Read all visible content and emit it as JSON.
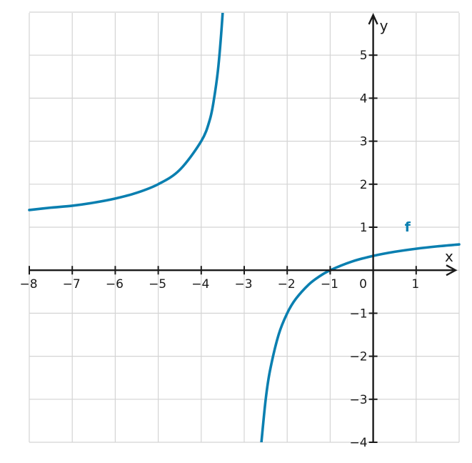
{
  "chart_data": {
    "type": "line",
    "title": "",
    "xlabel": "x",
    "ylabel": "y",
    "xlim": [
      -8,
      2
    ],
    "ylim": [
      -4,
      6
    ],
    "grid": true,
    "x_ticks": [
      -8,
      -7,
      -6,
      -5,
      -4,
      -3,
      -2,
      -1,
      0,
      1
    ],
    "x_tick_labels": [
      "−8",
      "−7",
      "−6",
      "−5",
      "−4",
      "−3",
      "−2",
      "−1",
      "0",
      "1"
    ],
    "y_ticks": [
      -4,
      -3,
      -2,
      -1,
      1,
      2,
      3,
      4,
      5
    ],
    "y_tick_labels": [
      "−4",
      "−3",
      "−2",
      "−1",
      "1",
      "2",
      "3",
      "4",
      "5"
    ],
    "series": [
      {
        "name": "f",
        "color": "#0a7fb0",
        "branches": [
          {
            "x": [
              -8,
              -7.5,
              -7,
              -6.5,
              -6,
              -5.5,
              -5,
              -4.5,
              -4,
              -3.8,
              -3.7,
              -3.6,
              -3.5,
              -3.45
            ],
            "y": [
              1.4,
              1.4545,
              1.5,
              1.5714,
              1.6667,
              1.8,
              2.0,
              2.3333,
              3.0,
              3.5,
              4.0,
              4.75,
              6.0,
              7.0
            ]
          },
          {
            "x": [
              -2.6,
              -2.5,
              -2.4,
              -2.2,
              -2,
              -1.8,
              -1.5,
              -1.25,
              -1,
              -0.5,
              0,
              0.5,
              1,
              1.5,
              2
            ],
            "y": [
              -4.0,
              -3.0,
              -2.3333,
              -1.5,
              -1.0,
              -0.6667,
              -0.3333,
              -0.1429,
              0.0,
              0.2,
              0.3333,
              0.4286,
              0.5,
              0.5556,
              0.6
            ]
          }
        ]
      }
    ]
  }
}
